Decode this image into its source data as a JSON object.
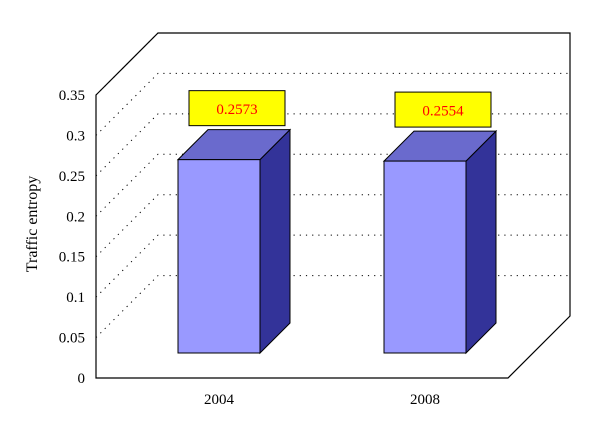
{
  "chart_data": {
    "type": "bar",
    "categories": [
      "2004",
      "2008"
    ],
    "values": [
      0.2573,
      0.2554
    ],
    "data_labels": [
      "0.2573",
      "0.2554"
    ],
    "title": "",
    "xlabel": "",
    "ylabel": "Traffic entropy",
    "ylim": [
      0,
      0.35
    ],
    "y_ticks": [
      "0",
      "0.05",
      "0.1",
      "0.15",
      "0.2",
      "0.25",
      "0.3",
      "0.35"
    ],
    "grid": true,
    "three_d": true,
    "colors": {
      "bar_front": "#9999ff",
      "bar_top": "#6a6acd",
      "bar_side": "#333399",
      "label_fill": "#ffff00",
      "label_text": "#ff0000"
    }
  }
}
